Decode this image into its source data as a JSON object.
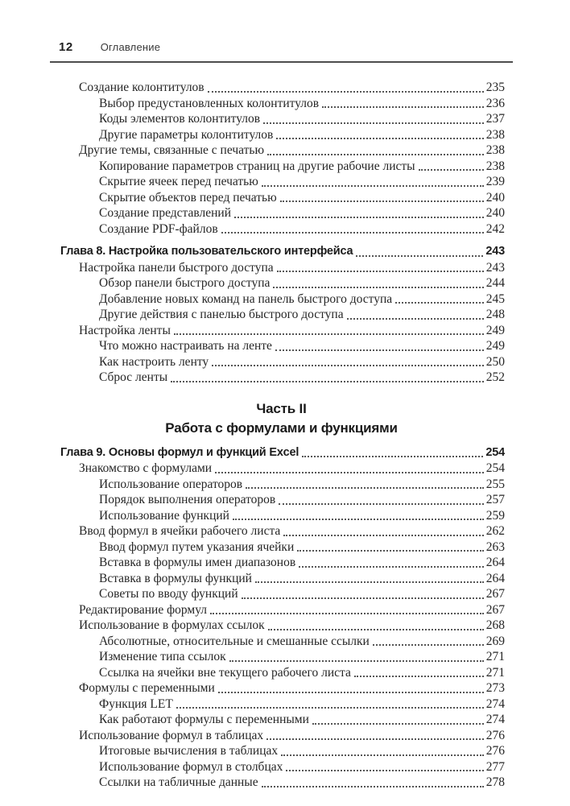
{
  "header": {
    "page_number": "12",
    "title": "Оглавление"
  },
  "colors": {
    "text": "#262626",
    "rule": "#4d4d4d",
    "leader_dots": "#565656",
    "background": "#ffffff"
  },
  "toc": {
    "blocks": [
      {
        "type": "entries",
        "items": [
          {
            "level": 1,
            "title": "Создание колонтитулов",
            "page": "235",
            "bold": false
          },
          {
            "level": 2,
            "title": "Выбор предустановленных колонтитулов",
            "page": "236",
            "bold": false
          },
          {
            "level": 2,
            "title": "Коды элементов колонтитулов",
            "page": "237",
            "bold": false
          },
          {
            "level": 2,
            "title": "Другие параметры колонтитулов",
            "page": "238",
            "bold": false
          },
          {
            "level": 1,
            "title": "Другие темы, связанные с печатью",
            "page": "238",
            "bold": false
          },
          {
            "level": 2,
            "title": "Копирование параметров страниц на другие рабочие листы",
            "page": "238",
            "bold": false
          },
          {
            "level": 2,
            "title": "Скрытие ячеек перед печатью",
            "page": "239",
            "bold": false
          },
          {
            "level": 2,
            "title": "Скрытие объектов перед печатью",
            "page": "240",
            "bold": false
          },
          {
            "level": 2,
            "title": "Создание представлений",
            "page": "240",
            "bold": false
          },
          {
            "level": 2,
            "title": "Создание PDF-файлов",
            "page": "242",
            "bold": false
          },
          {
            "level": 0,
            "title": "Глава 8. Настройка пользовательского интерфейса",
            "page": "243",
            "bold": true
          },
          {
            "level": 1,
            "title": "Настройка панели быстрого доступа",
            "page": "243",
            "bold": false
          },
          {
            "level": 2,
            "title": "Обзор панели быстрого доступа",
            "page": "244",
            "bold": false
          },
          {
            "level": 2,
            "title": "Добавление новых команд на панель быстрого доступа",
            "page": "245",
            "bold": false
          },
          {
            "level": 2,
            "title": "Другие действия с панелью быстрого доступа",
            "page": "248",
            "bold": false
          },
          {
            "level": 1,
            "title": "Настройка ленты",
            "page": "249",
            "bold": false
          },
          {
            "level": 2,
            "title": "Что можно настраивать на ленте",
            "page": "249",
            "bold": false
          },
          {
            "level": 2,
            "title": "Как настроить ленту",
            "page": "250",
            "bold": false
          },
          {
            "level": 2,
            "title": "Сброс ленты",
            "page": "252",
            "bold": false
          }
        ]
      },
      {
        "type": "part_heading",
        "part_label": "Часть II",
        "part_title": "Работа с формулами и функциями"
      },
      {
        "type": "entries",
        "items": [
          {
            "level": 0,
            "title": "Глава 9. Основы формул и функций Excel",
            "page": "254",
            "bold": true
          },
          {
            "level": 1,
            "title": "Знакомство с формулами",
            "page": "254",
            "bold": false
          },
          {
            "level": 2,
            "title": "Использование операторов",
            "page": "255",
            "bold": false
          },
          {
            "level": 2,
            "title": "Порядок выполнения операторов",
            "page": "257",
            "bold": false
          },
          {
            "level": 2,
            "title": "Использование функций",
            "page": "259",
            "bold": false
          },
          {
            "level": 1,
            "title": "Ввод формул в ячейки рабочего листа",
            "page": "262",
            "bold": false
          },
          {
            "level": 2,
            "title": "Ввод формул путем указания ячейки",
            "page": "263",
            "bold": false
          },
          {
            "level": 2,
            "title": "Вставка в формулы имен диапазонов",
            "page": "264",
            "bold": false
          },
          {
            "level": 2,
            "title": "Вставка в формулы функций",
            "page": "264",
            "bold": false
          },
          {
            "level": 2,
            "title": "Советы по вводу функций",
            "page": "267",
            "bold": false
          },
          {
            "level": 1,
            "title": "Редактирование формул",
            "page": "267",
            "bold": false
          },
          {
            "level": 1,
            "title": "Использование в формулах ссылок",
            "page": "268",
            "bold": false
          },
          {
            "level": 2,
            "title": "Абсолютные, относительные и смешанные ссылки",
            "page": "269",
            "bold": false
          },
          {
            "level": 2,
            "title": "Изменение типа ссылок",
            "page": "271",
            "bold": false
          },
          {
            "level": 2,
            "title": "Ссылка на ячейки вне текущего рабочего листа",
            "page": "271",
            "bold": false
          },
          {
            "level": 1,
            "title": "Формулы с переменными",
            "page": "273",
            "bold": false
          },
          {
            "level": 2,
            "title": "Функция LET",
            "page": "274",
            "bold": false
          },
          {
            "level": 2,
            "title": "Как работают формулы с переменными",
            "page": "274",
            "bold": false
          },
          {
            "level": 1,
            "title": "Использование формул в таблицах",
            "page": "276",
            "bold": false
          },
          {
            "level": 2,
            "title": "Итоговые вычисления в таблицах",
            "page": "276",
            "bold": false
          },
          {
            "level": 2,
            "title": "Использование формул в столбцах",
            "page": "277",
            "bold": false
          },
          {
            "level": 2,
            "title": "Ссылки на табличные данные",
            "page": "278",
            "bold": false
          }
        ]
      }
    ]
  }
}
